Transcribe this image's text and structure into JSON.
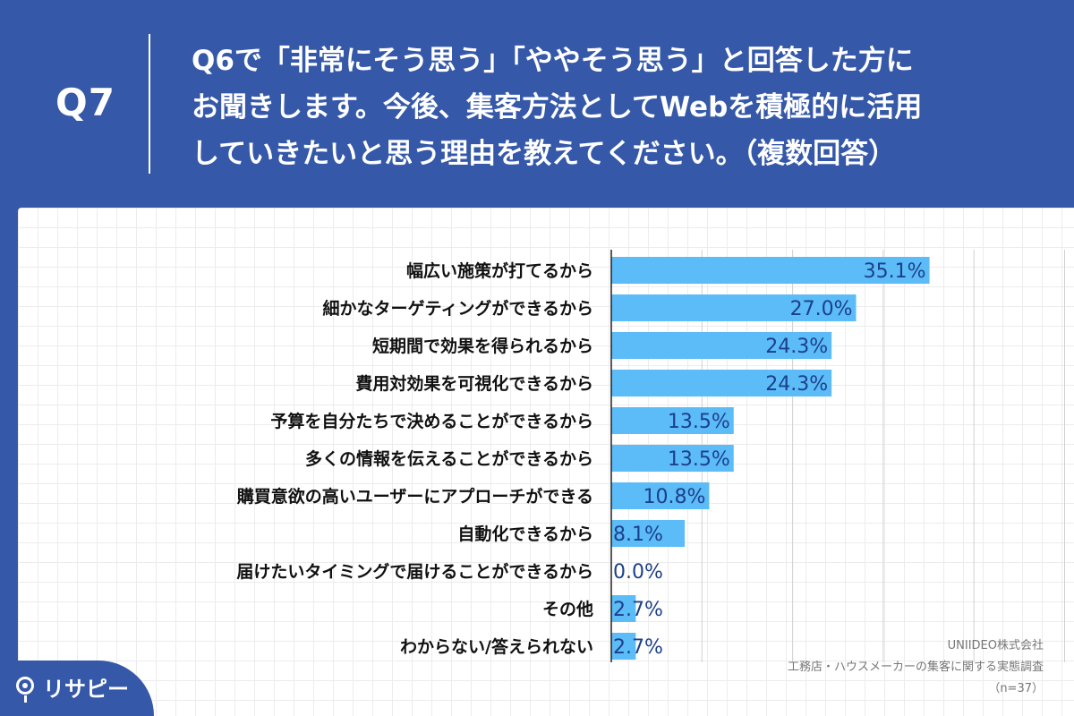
{
  "header": {
    "question_number": "Q7",
    "question_text": "Q6で「非常にそう思う」「ややそう思う」と回答した方に\nお聞きします。今後、集客方法としてWebを積極的に活用\nしていきたいと思う理由を教えてください。（複数回答）"
  },
  "footer": {
    "company": "UNIIDEO株式会社",
    "survey_title": "工務店・ハウスメーカーの集客に関する実態調査",
    "sample_size": "（n=37）"
  },
  "logo": {
    "text": "リサピー"
  },
  "colors": {
    "background": "#3558a8",
    "bar": "#5bbcf7",
    "value_label": "#1d3f8a",
    "category_label": "#111111",
    "gridline": "#d0d0d0"
  },
  "chart_data": {
    "type": "bar",
    "orientation": "horizontal",
    "categories": [
      "幅広い施策が打てるから",
      "細かなターゲティングができるから",
      "短期間で効果を得られるから",
      "費用対効果を可視化できるから",
      "予算を自分たちで決めることができるから",
      "多くの情報を伝えることができるから",
      "購買意欲の高いユーザーにアプローチができる",
      "自動化できるから",
      "届けたいタイミングで届けることができるから",
      "その他",
      "わからない/答えられない"
    ],
    "values": [
      35.1,
      27.0,
      24.3,
      24.3,
      13.5,
      13.5,
      10.8,
      8.1,
      0.0,
      2.7,
      2.7
    ],
    "value_labels": [
      "35.1%",
      "27.0%",
      "24.3%",
      "24.3%",
      "13.5%",
      "13.5%",
      "10.8%",
      "8.1%",
      "0.0%",
      "2.7%",
      "2.7%"
    ],
    "xlim": [
      0,
      50
    ],
    "grid": true,
    "legend": "none"
  }
}
